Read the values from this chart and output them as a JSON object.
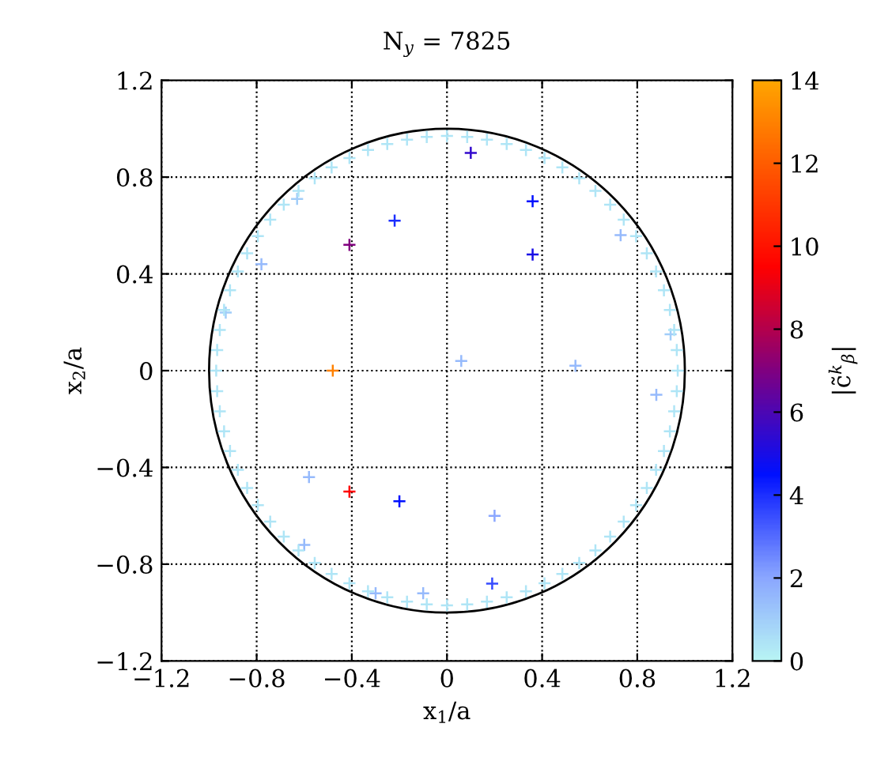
{
  "chart_data": {
    "type": "scatter",
    "title": "N$_{y}$ = 7825",
    "xlabel": "x$_{1}$/a",
    "ylabel": "x$_{2}$/a",
    "clabel": "|c̃$^{k}$$_{β}$|",
    "xlim": [
      -1.2,
      1.2
    ],
    "ylim": [
      -1.2,
      1.2
    ],
    "xticks": [
      -1.2,
      -0.8,
      -0.4,
      0,
      0.4,
      0.8,
      1.2
    ],
    "yticks": [
      -1.2,
      -0.8,
      -0.4,
      0,
      0.4,
      0.8,
      1.2
    ],
    "clim": [
      0,
      14
    ],
    "cticks": [
      0,
      2,
      4,
      6,
      8,
      10,
      12,
      14
    ],
    "grid": true,
    "marker": "cross",
    "series": [
      {
        "x": [
          0.1,
          -0.22,
          -0.41,
          0.36,
          0.36,
          -0.78,
          -0.48,
          0.06,
          0.54,
          -0.58,
          -0.41,
          -0.2,
          0.2,
          0.19,
          -0.1,
          -0.3,
          -0.6,
          0.88,
          0.73,
          0.94,
          -0.63,
          -0.93,
          0.97,
          0.966,
          0.955,
          0.937,
          0.912,
          0.879,
          0.84,
          0.795,
          0.743,
          0.686,
          0.624,
          0.556,
          0.485,
          0.41,
          0.332,
          0.251,
          0.168,
          0.085,
          0,
          -0.085,
          -0.168,
          -0.251,
          -0.332,
          -0.41,
          -0.485,
          -0.556,
          -0.624,
          -0.686,
          -0.743,
          -0.795,
          -0.84,
          -0.879,
          -0.912,
          -0.937,
          -0.955,
          -0.966,
          -0.97,
          -0.966,
          -0.955,
          -0.937,
          -0.912,
          -0.879,
          -0.84,
          -0.795,
          -0.743,
          -0.686,
          -0.624,
          -0.556,
          -0.485,
          -0.41,
          -0.332,
          -0.251,
          -0.168,
          -0.085,
          0,
          0.085,
          0.168,
          0.251,
          0.332,
          0.41,
          0.485,
          0.556,
          0.624,
          0.686,
          0.743,
          0.795,
          0.84,
          0.879,
          0.912,
          0.937,
          0.955,
          0.966
        ],
        "values": [
          0.9,
          0.62,
          0.52,
          0.7,
          0.48,
          0.44,
          0,
          0.04,
          0.02,
          -0.44,
          -0.5,
          -0.54,
          -0.6,
          -0.88,
          -0.92,
          -0.92,
          -0.72,
          -0.1,
          0.56,
          0.15,
          0.71,
          0.24,
          0,
          0.085,
          0.168,
          0.251,
          0.332,
          0.41,
          0.485,
          0.556,
          0.624,
          0.686,
          0.743,
          0.795,
          0.84,
          0.879,
          0.912,
          0.937,
          0.955,
          0.966,
          0.97,
          0.966,
          0.955,
          0.937,
          0.912,
          0.879,
          0.84,
          0.795,
          0.743,
          0.686,
          0.624,
          0.556,
          0.485,
          0.41,
          0.332,
          0.251,
          0.168,
          0.085,
          0,
          -0.085,
          -0.168,
          -0.251,
          -0.332,
          -0.41,
          -0.485,
          -0.556,
          -0.624,
          -0.686,
          -0.743,
          -0.795,
          -0.84,
          -0.879,
          -0.912,
          -0.937,
          -0.955,
          -0.966,
          -0.97,
          -0.966,
          -0.955,
          -0.937,
          -0.912,
          -0.879,
          -0.84,
          -0.795,
          -0.743,
          -0.686,
          -0.624,
          -0.556,
          -0.485,
          -0.41,
          -0.332,
          -0.251,
          -0.168,
          -0.085
        ],
        "cvalues": [
          5.5,
          4,
          7,
          4.5,
          5,
          1.5,
          13,
          1.5,
          1.5,
          1.5,
          9.5,
          4.5,
          2,
          3.5,
          1.5,
          1.5,
          1.5,
          1.5,
          1.5,
          1,
          1,
          1,
          0.4,
          0.4,
          0.4,
          0.4,
          0.4,
          0.4,
          0.4,
          0.4,
          0.4,
          0.4,
          0.4,
          0.4,
          0.4,
          0.4,
          0.4,
          0.4,
          0.4,
          0.4,
          0.4,
          0.4,
          0.4,
          0.4,
          0.4,
          0.4,
          0.4,
          0.4,
          0.4,
          0.4,
          0.4,
          0.4,
          0.4,
          0.4,
          0.4,
          0.4,
          0.4,
          0.4,
          0.4,
          0.4,
          0.4,
          0.4,
          0.4,
          0.4,
          0.4,
          0.4,
          0.4,
          0.4,
          0.4,
          0.4,
          0.4,
          0.4,
          0.4,
          0.4,
          0.4,
          0.4,
          0.4,
          0.4,
          0.4,
          0.4,
          0.4,
          0.4,
          0.4,
          0.4,
          0.4,
          0.4,
          0.4,
          0.4,
          0.4,
          0.4,
          0.4,
          0.4,
          0.4,
          0.4
        ]
      }
    ]
  }
}
